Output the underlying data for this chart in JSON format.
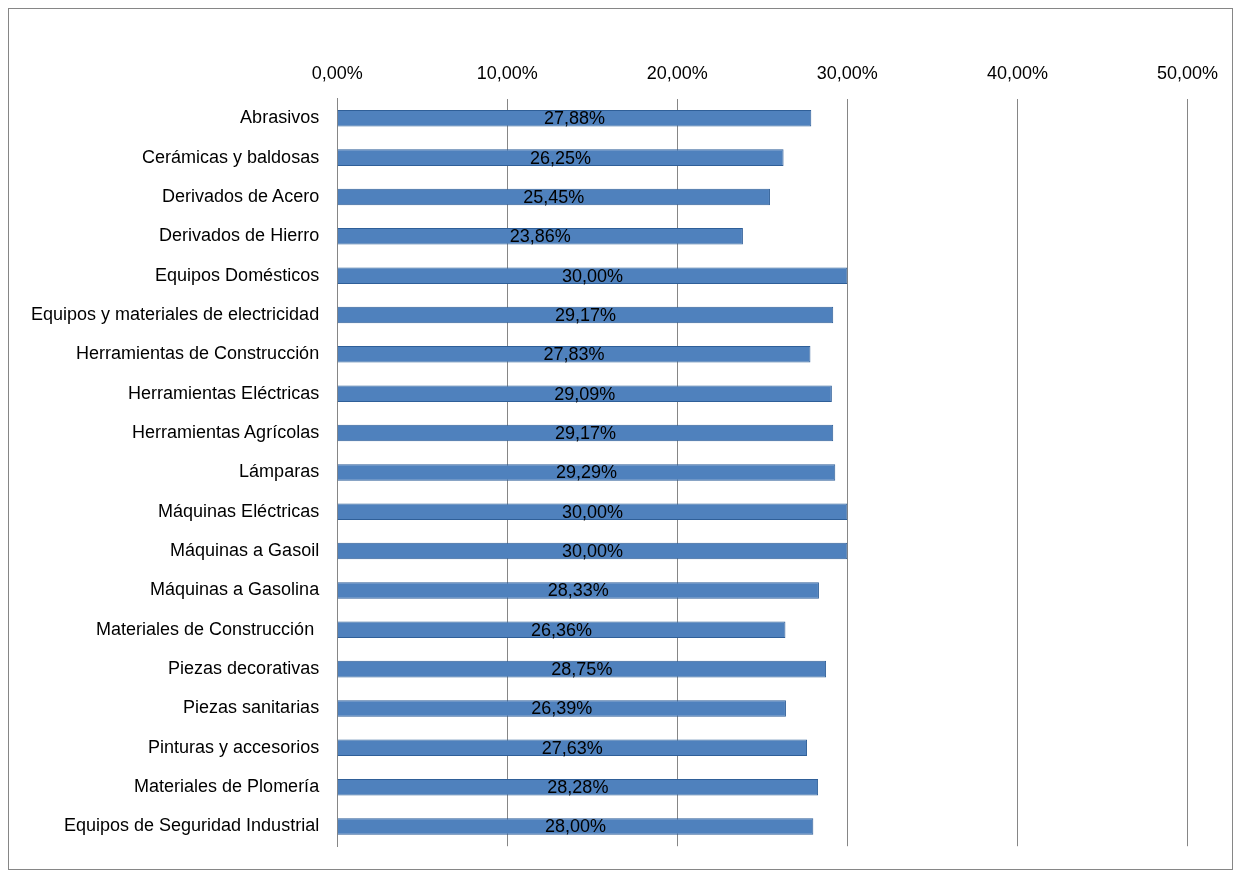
{
  "chart_data": {
    "type": "bar",
    "orientation": "horizontal",
    "categories": [
      "Abrasivos",
      "Cerámicas y baldosas",
      "Derivados de Acero",
      "Derivados de Hierro",
      "Equipos Domésticos",
      "Equipos y materiales de electricidad",
      "Herramientas de Construcción",
      "Herramientas Eléctricas",
      "Herramientas Agrícolas",
      "Lámparas",
      "Máquinas Eléctricas",
      "Máquinas a Gasoil",
      "Máquinas a Gasolina",
      "Materiales de Construcción ",
      "Piezas decorativas",
      "Piezas sanitarias",
      "Pinturas y accesorios",
      "Materiales de Plomería",
      "Equipos de Seguridad Industrial"
    ],
    "values": [
      27.88,
      26.25,
      25.45,
      23.86,
      30.0,
      29.17,
      27.83,
      29.09,
      29.17,
      29.29,
      30.0,
      30.0,
      28.33,
      26.36,
      28.75,
      26.39,
      27.63,
      28.28,
      28.0
    ],
    "value_labels": [
      "27,88%",
      "26,25%",
      "25,45%",
      "23,86%",
      "30,00%",
      "29,17%",
      "27,83%",
      "29,09%",
      "29,17%",
      "29,29%",
      "30,00%",
      "30,00%",
      "28,33%",
      "26,36%",
      "28,75%",
      "26,39%",
      "27,63%",
      "28,28%",
      "28,00%"
    ],
    "color": "#4f81bd",
    "xlim": [
      0,
      50
    ],
    "xticks": [
      {
        "value": 0,
        "label": "0,00%"
      },
      {
        "value": 10,
        "label": "10,00%"
      },
      {
        "value": 20,
        "label": "20,00%"
      },
      {
        "value": 30,
        "label": "30,00%"
      },
      {
        "value": 40,
        "label": "40,00%"
      },
      {
        "value": 50,
        "label": "50,00%"
      }
    ],
    "grid": "x"
  }
}
